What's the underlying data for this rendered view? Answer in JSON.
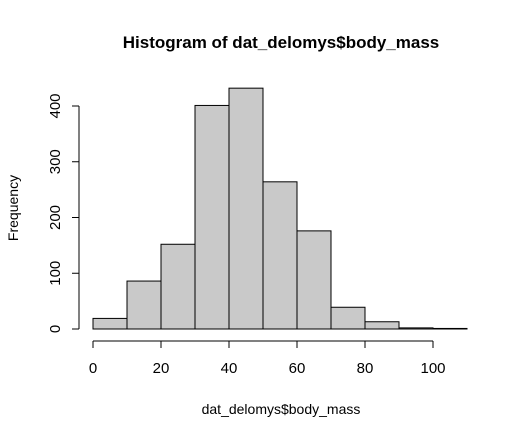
{
  "chart_data": {
    "type": "bar",
    "title": "Histogram of dat_delomys$body_mass",
    "xlabel": "dat_delomys$body_mass",
    "ylabel": "Frequency",
    "bins": [
      {
        "x0": 0,
        "x1": 10,
        "count": 19
      },
      {
        "x0": 10,
        "x1": 20,
        "count": 86
      },
      {
        "x0": 20,
        "x1": 30,
        "count": 152
      },
      {
        "x0": 30,
        "x1": 40,
        "count": 401
      },
      {
        "x0": 40,
        "x1": 50,
        "count": 432
      },
      {
        "x0": 50,
        "x1": 60,
        "count": 264
      },
      {
        "x0": 60,
        "x1": 70,
        "count": 176
      },
      {
        "x0": 70,
        "x1": 80,
        "count": 39
      },
      {
        "x0": 80,
        "x1": 90,
        "count": 13
      },
      {
        "x0": 90,
        "x1": 100,
        "count": 2
      },
      {
        "x0": 100,
        "x1": 110,
        "count": 1
      }
    ],
    "xticks": [
      0,
      20,
      40,
      60,
      80,
      100
    ],
    "yticks": [
      0,
      100,
      200,
      300,
      400
    ],
    "xlim": [
      0,
      110
    ],
    "ylim": [
      0,
      440
    ],
    "colors": {
      "bar_fill": "#c9c9c9",
      "bar_stroke": "#000000"
    }
  }
}
